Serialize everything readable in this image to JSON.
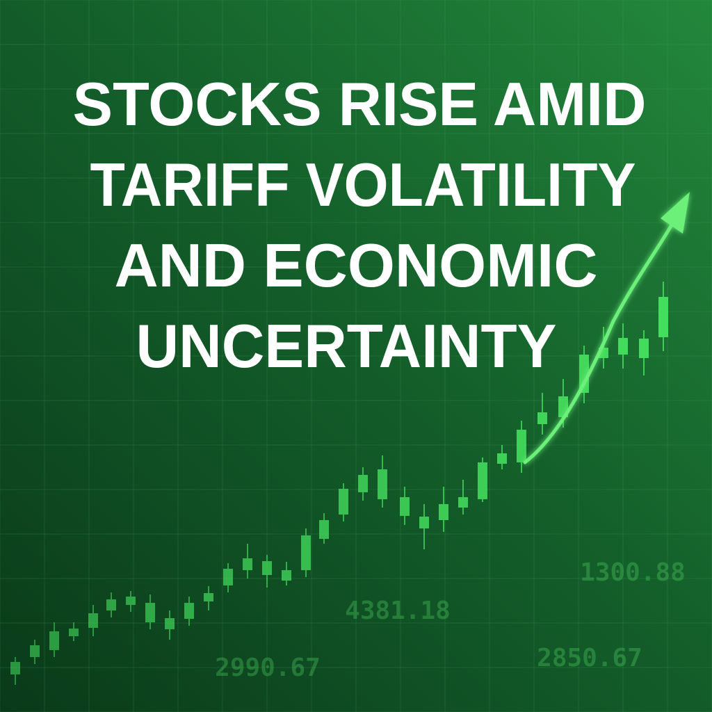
{
  "headline": {
    "lines": [
      "STOCKS RISE AMID",
      "TARIFF VOLATILITY",
      "AND ECONOMIC",
      "UNCERTAINTY"
    ]
  },
  "background_figures": [
    "1300.88",
    "4381.18",
    "2990.67",
    "2850.67"
  ]
}
